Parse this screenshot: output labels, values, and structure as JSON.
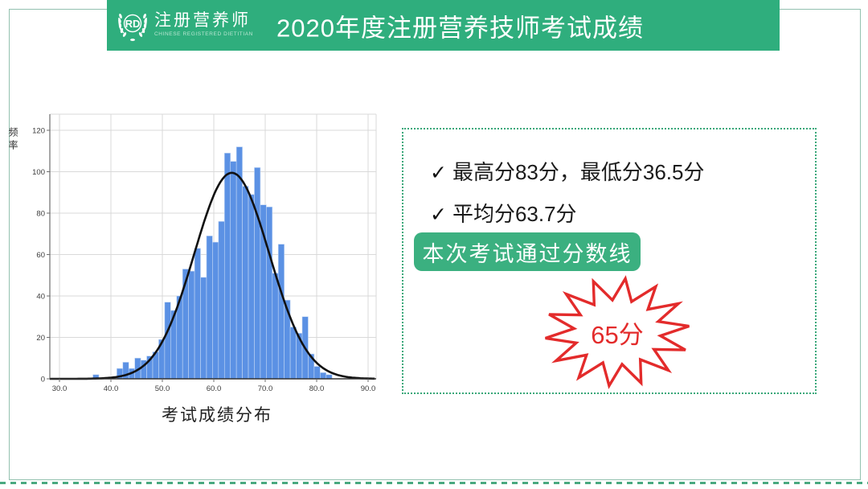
{
  "header": {
    "logo_rd": "RD",
    "logo_cn": "注册营养师",
    "logo_en": "CHINESE REGISTERED DIETITIAN",
    "title": "2020年度注册营养技师考试成绩"
  },
  "info_panel": {
    "check": "✓",
    "line1": "最高分83分，最低分36.5分",
    "line2": "平均分63.7分",
    "pass_button": "本次考试通过分数线",
    "pass_score": "65分"
  },
  "stats": {
    "max_score": 83,
    "min_score": 36.5,
    "mean_score": 63.7,
    "pass_line": 65
  },
  "chart_data": {
    "type": "bar",
    "subtype": "histogram-with-normal-curve",
    "title": "考试成绩分布",
    "xlabel": "",
    "ylabel": "频率",
    "xlim": [
      28.1,
      91.6
    ],
    "ylim": [
      0,
      128
    ],
    "grid": true,
    "x_tick_values": [
      30,
      40,
      50,
      60,
      70,
      80,
      90
    ],
    "x_tick_labels": [
      "30.0",
      "40.0",
      "50.0",
      "60.0",
      "70.0",
      "80.0",
      "90.0"
    ],
    "y_tick_values": [
      0,
      20,
      40,
      60,
      80,
      100,
      120
    ],
    "y_tick_labels": [
      "0",
      "20",
      "40",
      "60",
      "80",
      "100",
      "120"
    ],
    "bin_start": 36.5,
    "bin_width": 1.1625,
    "frequencies": [
      2,
      0,
      0,
      0,
      5,
      8,
      5,
      10,
      9,
      11,
      13,
      19,
      37,
      33,
      40,
      53,
      52,
      63,
      49,
      69,
      66,
      76,
      109,
      105,
      112,
      93,
      89,
      102,
      84,
      83,
      51,
      65,
      38,
      25,
      22,
      30,
      12,
      6,
      3,
      2
    ],
    "bar_color": "#5b91e4",
    "bar_edge_color": "#c3d7f4",
    "normal_curve": {
      "mean": 63.5,
      "sigma": 7.3,
      "peak": 99.5,
      "color": "#111111"
    },
    "grid_color": "#d9d9d9",
    "axis_color": "#6e6e6e"
  }
}
